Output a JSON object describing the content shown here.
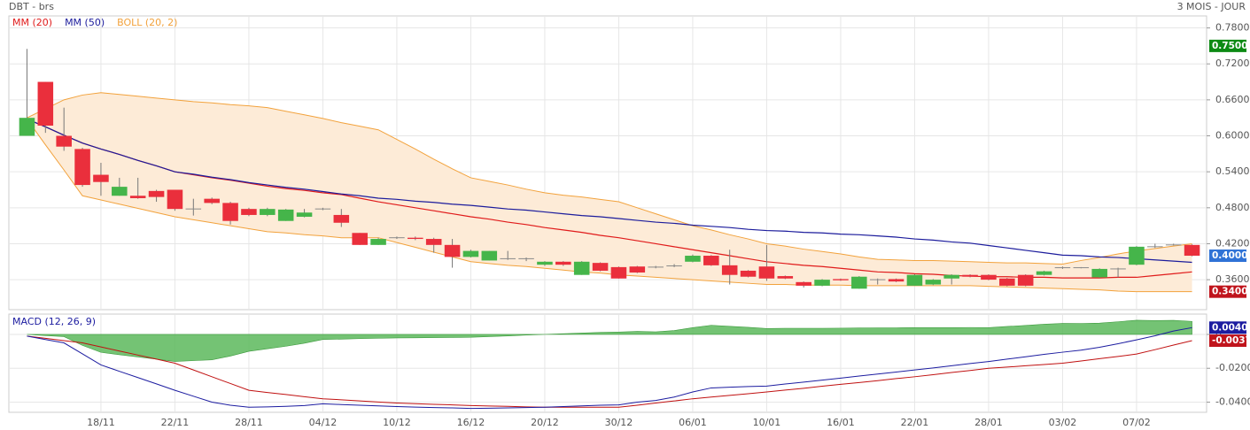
{
  "chart_data": [
    {
      "type": "candlestick",
      "title": "DBT - brs",
      "subtitle": "3 MOIS - JOUR",
      "categories": [
        null,
        null,
        null,
        null,
        "18/11",
        null,
        null,
        null,
        "22/11",
        null,
        null,
        null,
        "28/11",
        null,
        null,
        null,
        "04/12",
        null,
        null,
        null,
        "10/12",
        null,
        null,
        null,
        "16/12",
        null,
        null,
        null,
        "20/12",
        null,
        null,
        null,
        "30/12",
        null,
        null,
        null,
        "06/01",
        null,
        null,
        null,
        "10/01",
        null,
        null,
        null,
        "16/01",
        null,
        null,
        null,
        "22/01",
        null,
        null,
        null,
        "28/01",
        null,
        null,
        null,
        "03/02",
        null,
        null,
        null,
        "07/02",
        null,
        null,
        null
      ],
      "open": [
        0.6,
        0.69,
        0.6,
        0.578,
        0.535,
        0.5,
        0.5,
        0.508,
        0.51,
        0.478,
        0.495,
        0.488,
        0.478,
        0.468,
        0.458,
        0.465,
        0.478,
        0.468,
        0.438,
        0.418,
        0.43,
        0.43,
        0.428,
        0.418,
        0.398,
        0.392,
        0.395,
        0.395,
        0.385,
        0.39,
        0.368,
        0.388,
        0.381,
        0.382,
        0.381,
        0.383,
        0.39,
        0.4,
        0.384,
        0.375,
        0.382,
        0.366,
        0.356,
        0.35,
        0.361,
        0.345,
        0.36,
        0.361,
        0.35,
        0.352,
        0.362,
        0.368,
        0.368,
        0.362,
        0.368,
        0.368,
        0.38,
        0.38,
        0.364,
        0.378,
        0.385,
        0.415,
        0.418,
        0.418
      ],
      "high": [
        0.745,
        0.69,
        0.647,
        0.58,
        0.555,
        0.53,
        0.53,
        0.51,
        0.51,
        0.495,
        0.497,
        0.49,
        0.48,
        0.48,
        0.478,
        0.478,
        0.48,
        0.478,
        0.438,
        0.43,
        0.432,
        0.432,
        0.43,
        0.428,
        0.41,
        0.408,
        0.408,
        0.397,
        0.391,
        0.391,
        0.391,
        0.389,
        0.382,
        0.383,
        0.383,
        0.386,
        0.402,
        0.401,
        0.41,
        0.376,
        0.418,
        0.367,
        0.357,
        0.361,
        0.362,
        0.366,
        0.362,
        0.362,
        0.369,
        0.361,
        0.369,
        0.369,
        0.369,
        0.363,
        0.369,
        0.375,
        0.382,
        0.381,
        0.379,
        0.38,
        0.416,
        0.42,
        0.42,
        0.419
      ],
      "low": [
        0.6,
        0.605,
        0.575,
        0.515,
        0.5,
        0.5,
        0.495,
        0.49,
        0.475,
        0.467,
        0.486,
        0.452,
        0.466,
        0.466,
        0.458,
        0.464,
        0.476,
        0.448,
        0.418,
        0.418,
        0.428,
        0.426,
        0.405,
        0.38,
        0.397,
        0.392,
        0.393,
        0.391,
        0.383,
        0.383,
        0.368,
        0.374,
        0.362,
        0.371,
        0.379,
        0.381,
        0.389,
        0.383,
        0.352,
        0.364,
        0.358,
        0.361,
        0.347,
        0.349,
        0.358,
        0.345,
        0.352,
        0.356,
        0.35,
        0.351,
        0.352,
        0.364,
        0.359,
        0.349,
        0.349,
        0.367,
        0.378,
        0.379,
        0.363,
        0.364,
        0.384,
        0.413,
        0.417,
        0.399
      ],
      "close": [
        0.63,
        0.617,
        0.582,
        0.518,
        0.523,
        0.515,
        0.496,
        0.498,
        0.478,
        0.478,
        0.488,
        0.458,
        0.468,
        0.478,
        0.477,
        0.472,
        0.478,
        0.455,
        0.418,
        0.428,
        0.43,
        0.428,
        0.418,
        0.398,
        0.408,
        0.408,
        0.395,
        0.395,
        0.39,
        0.385,
        0.39,
        0.375,
        0.362,
        0.372,
        0.381,
        0.383,
        0.4,
        0.384,
        0.368,
        0.365,
        0.362,
        0.362,
        0.35,
        0.36,
        0.359,
        0.365,
        0.36,
        0.357,
        0.368,
        0.36,
        0.368,
        0.365,
        0.36,
        0.35,
        0.35,
        0.374,
        0.38,
        0.38,
        0.378,
        0.378,
        0.415,
        0.415,
        0.418,
        0.4
      ],
      "up_color": "#45b54a",
      "down_color": "#ea2f3c",
      "flat_color": "#8a8a8a",
      "series": [
        {
          "name": "MM (20)",
          "color": "#e01b1b",
          "values": [
            0.628,
            0.615,
            0.601,
            0.588,
            0.578,
            0.569,
            0.559,
            0.55,
            0.54,
            0.535,
            0.53,
            0.526,
            0.521,
            0.516,
            0.512,
            0.509,
            0.505,
            0.502,
            0.496,
            0.49,
            0.485,
            0.48,
            0.475,
            0.47,
            0.465,
            0.461,
            0.456,
            0.452,
            0.447,
            0.443,
            0.439,
            0.434,
            0.43,
            0.425,
            0.42,
            0.415,
            0.41,
            0.405,
            0.4,
            0.395,
            0.39,
            0.387,
            0.384,
            0.382,
            0.379,
            0.376,
            0.373,
            0.372,
            0.37,
            0.369,
            0.367,
            0.366,
            0.365,
            0.365,
            0.364,
            0.364,
            0.363,
            0.363,
            0.363,
            0.364,
            0.364,
            0.367,
            0.37,
            0.373
          ]
        },
        {
          "name": "MM (50)",
          "color": "#1c1c9c",
          "values": [
            0.628,
            0.615,
            0.601,
            0.588,
            0.578,
            0.569,
            0.559,
            0.55,
            0.54,
            0.536,
            0.531,
            0.527,
            0.522,
            0.518,
            0.514,
            0.511,
            0.507,
            0.503,
            0.5,
            0.496,
            0.494,
            0.491,
            0.489,
            0.486,
            0.484,
            0.481,
            0.478,
            0.476,
            0.473,
            0.47,
            0.467,
            0.465,
            0.462,
            0.459,
            0.456,
            0.454,
            0.451,
            0.449,
            0.447,
            0.444,
            0.442,
            0.441,
            0.439,
            0.438,
            0.436,
            0.435,
            0.433,
            0.431,
            0.428,
            0.426,
            0.423,
            0.421,
            0.417,
            0.413,
            0.409,
            0.405,
            0.401,
            0.4,
            0.398,
            0.397,
            0.395,
            0.393,
            0.391,
            0.389
          ]
        }
      ],
      "band": {
        "name": "BOLL (20, 2)",
        "color": "#f2a23c",
        "fill": "#fdebd7",
        "upper": [
          0.63,
          0.645,
          0.66,
          0.668,
          0.672,
          0.669,
          0.666,
          0.663,
          0.66,
          0.657,
          0.655,
          0.652,
          0.65,
          0.647,
          0.641,
          0.635,
          0.629,
          0.622,
          0.616,
          0.61,
          0.594,
          0.578,
          0.561,
          0.545,
          0.53,
          0.524,
          0.518,
          0.511,
          0.505,
          0.501,
          0.498,
          0.494,
          0.49,
          0.48,
          0.47,
          0.46,
          0.45,
          0.443,
          0.435,
          0.428,
          0.42,
          0.416,
          0.411,
          0.407,
          0.403,
          0.398,
          0.394,
          0.393,
          0.392,
          0.392,
          0.391,
          0.39,
          0.389,
          0.388,
          0.388,
          0.387,
          0.386,
          0.392,
          0.397,
          0.403,
          0.408,
          0.412,
          0.416,
          0.42
        ],
        "lower": [
          0.628,
          0.585,
          0.543,
          0.5,
          0.493,
          0.486,
          0.479,
          0.472,
          0.465,
          0.46,
          0.455,
          0.45,
          0.445,
          0.44,
          0.438,
          0.435,
          0.433,
          0.43,
          0.43,
          0.43,
          0.422,
          0.414,
          0.406,
          0.398,
          0.39,
          0.387,
          0.384,
          0.382,
          0.379,
          0.376,
          0.373,
          0.371,
          0.368,
          0.366,
          0.364,
          0.362,
          0.36,
          0.358,
          0.356,
          0.354,
          0.352,
          0.352,
          0.351,
          0.351,
          0.351,
          0.35,
          0.35,
          0.35,
          0.35,
          0.35,
          0.35,
          0.35,
          0.349,
          0.348,
          0.347,
          0.346,
          0.345,
          0.344,
          0.343,
          0.341,
          0.34,
          0.34,
          0.34,
          0.34
        ]
      },
      "ylim": [
        0.31,
        0.8
      ],
      "yticks": [
        {
          "value": 0.36,
          "label": "0.3600"
        },
        {
          "value": 0.42,
          "label": "0.4200"
        },
        {
          "value": 0.48,
          "label": "0.4800"
        },
        {
          "value": 0.54,
          "label": "0.5400"
        },
        {
          "value": 0.6,
          "label": "0.6000"
        },
        {
          "value": 0.66,
          "label": "0.6600"
        },
        {
          "value": 0.72,
          "label": "0.7200"
        },
        {
          "value": 0.78,
          "label": "0.7800"
        }
      ],
      "markers": [
        {
          "value": 0.75,
          "label": "0.7500",
          "color": "#0c8a14"
        },
        {
          "value": 0.4,
          "label": "0.4000",
          "color": "#2f72d6"
        },
        {
          "value": 0.34,
          "label": "0.3400",
          "color": "#c0141c"
        }
      ],
      "grid": true
    },
    {
      "type": "macd",
      "title": "MACD (12, 26, 9)",
      "title_color": "#1c1ca0",
      "macd": {
        "color": "#1c1ca0",
        "values": [
          -0.001,
          -0.003,
          -0.005,
          -0.0115,
          -0.018,
          -0.0218,
          -0.0255,
          -0.0292,
          -0.033,
          -0.0365,
          -0.04,
          -0.0418,
          -0.043,
          -0.0428,
          -0.0425,
          -0.042,
          -0.041,
          -0.0414,
          -0.0418,
          -0.0422,
          -0.0426,
          -0.0429,
          -0.0432,
          -0.0434,
          -0.0437,
          -0.0436,
          -0.0434,
          -0.0432,
          -0.043,
          -0.0426,
          -0.0422,
          -0.0418,
          -0.0416,
          -0.04,
          -0.039,
          -0.037,
          -0.034,
          -0.0316,
          -0.0312,
          -0.0308,
          -0.0305,
          -0.0293,
          -0.0282,
          -0.027,
          -0.0258,
          -0.0246,
          -0.0234,
          -0.0222,
          -0.021,
          -0.0198,
          -0.0185,
          -0.0172,
          -0.016,
          -0.0146,
          -0.0132,
          -0.0118,
          -0.0105,
          -0.0093,
          -0.0076,
          -0.0055,
          -0.0032,
          -0.0008,
          0.002,
          0.004
        ]
      },
      "signal": {
        "color": "#c01010",
        "values": [
          -0.001,
          -0.0023,
          -0.0037,
          -0.005,
          -0.0074,
          -0.0098,
          -0.0122,
          -0.0146,
          -0.017,
          -0.021,
          -0.025,
          -0.029,
          -0.033,
          -0.0343,
          -0.0355,
          -0.0368,
          -0.038,
          -0.0386,
          -0.0393,
          -0.0399,
          -0.0405,
          -0.0409,
          -0.0413,
          -0.0416,
          -0.042,
          -0.0423,
          -0.0425,
          -0.0428,
          -0.043,
          -0.043,
          -0.043,
          -0.043,
          -0.043,
          -0.0418,
          -0.0405,
          -0.0393,
          -0.038,
          -0.037,
          -0.036,
          -0.035,
          -0.034,
          -0.0329,
          -0.0318,
          -0.0306,
          -0.0295,
          -0.0284,
          -0.0273,
          -0.0261,
          -0.025,
          -0.0238,
          -0.0225,
          -0.0213,
          -0.02,
          -0.0193,
          -0.0185,
          -0.0178,
          -0.017,
          -0.0157,
          -0.0143,
          -0.013,
          -0.0116,
          -0.009,
          -0.0063,
          -0.0037
        ]
      },
      "histogram": {
        "color": "#5cb85c",
        "values": [
          0.0,
          -0.0007,
          -0.0013,
          -0.0065,
          -0.0106,
          -0.012,
          -0.0133,
          -0.0146,
          -0.016,
          -0.0155,
          -0.015,
          -0.0128,
          -0.01,
          -0.0085,
          -0.007,
          -0.0052,
          -0.003,
          -0.0028,
          -0.0025,
          -0.0023,
          -0.0021,
          -0.002,
          -0.0019,
          -0.0018,
          -0.0017,
          -0.0013,
          -0.0009,
          -0.0004,
          0.0,
          0.0004,
          0.0008,
          0.0012,
          0.0014,
          0.0018,
          0.0015,
          0.0023,
          0.004,
          0.0054,
          0.0048,
          0.0042,
          0.0035,
          0.0036,
          0.0036,
          0.0036,
          0.0037,
          0.0038,
          0.0039,
          0.0039,
          0.004,
          0.004,
          0.004,
          0.0041,
          0.004,
          0.0047,
          0.0053,
          0.006,
          0.0065,
          0.0064,
          0.0067,
          0.0075,
          0.0084,
          0.0082,
          0.0083,
          0.0077
        ]
      },
      "ylim": [
        -0.046,
        0.012
      ],
      "yticks": [
        {
          "value": -0.04,
          "label": "-0.0400"
        },
        {
          "value": -0.02,
          "label": "-0.0200"
        },
        0
      ],
      "markers": [
        {
          "value": 0.004,
          "label": "0.0040",
          "color": "#1c1ca0"
        },
        {
          "value": -0.0037,
          "label": "-0.0037",
          "color": "#c0141c"
        }
      ],
      "grid": true
    }
  ]
}
